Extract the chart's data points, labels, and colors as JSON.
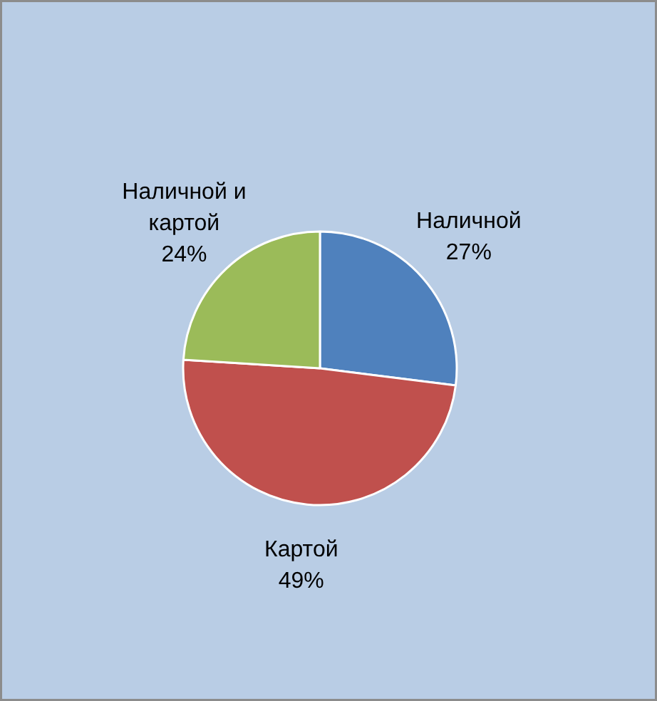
{
  "chart_data": {
    "type": "pie",
    "categories": [
      "Наличной",
      "Картой",
      "Наличной и картой"
    ],
    "values": [
      27,
      49,
      24
    ],
    "value_labels": [
      "27%",
      "49%",
      "24%"
    ],
    "colors": [
      "#4f81bd",
      "#c0504d",
      "#9bbb59"
    ]
  }
}
